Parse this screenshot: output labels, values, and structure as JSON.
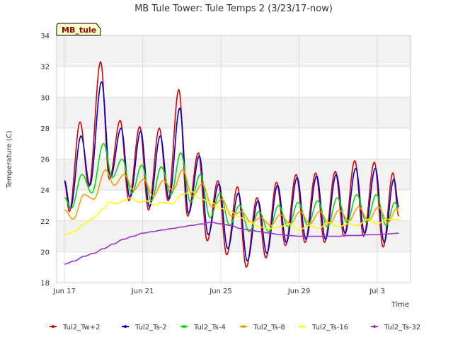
{
  "chart_data": {
    "type": "line",
    "title": "MB Tule Tower: Tule Temps 2 (3/23/17-now)",
    "xlabel": "Time",
    "ylabel": "Temperature (C)",
    "badge": "MB_tule",
    "xlim": [
      "Jun 17",
      "Jul 5"
    ],
    "ylim": [
      18,
      34
    ],
    "yticks": [
      18,
      20,
      22,
      24,
      26,
      28,
      30,
      32,
      34
    ],
    "xticks": [
      "Jun 17",
      "Jun 21",
      "Jun 25",
      "Jun 29",
      "Jul 3"
    ],
    "legend_position": "bottom",
    "grid": true,
    "series": [
      {
        "name": "Tul2_Tw+2",
        "color": "#dd0000",
        "peaks": [
          [
            17.0,
            24.5
          ],
          [
            17.25,
            22.6
          ],
          [
            17.8,
            28.4
          ],
          [
            18.25,
            24.2
          ],
          [
            18.85,
            32.3
          ],
          [
            19.3,
            24.7
          ],
          [
            19.85,
            28.5
          ],
          [
            20.3,
            23.3
          ],
          [
            20.85,
            28.1
          ],
          [
            21.3,
            22.7
          ],
          [
            21.85,
            28.0
          ],
          [
            22.3,
            23.3
          ],
          [
            22.85,
            30.5
          ],
          [
            23.3,
            22.3
          ],
          [
            23.85,
            26.4
          ],
          [
            24.3,
            20.7
          ],
          [
            24.85,
            24.6
          ],
          [
            25.3,
            19.8
          ],
          [
            25.85,
            24.2
          ],
          [
            26.3,
            19.0
          ],
          [
            26.85,
            23.5
          ],
          [
            27.3,
            19.6
          ],
          [
            27.85,
            24.5
          ],
          [
            28.3,
            20.4
          ],
          [
            28.85,
            25.0
          ],
          [
            29.3,
            20.6
          ],
          [
            29.85,
            25.1
          ],
          [
            30.3,
            20.6
          ],
          [
            30.85,
            25.2
          ],
          [
            31.3,
            21.0
          ],
          [
            31.85,
            25.9
          ],
          [
            32.3,
            21.0
          ],
          [
            32.85,
            25.8
          ],
          [
            33.3,
            20.3
          ],
          [
            33.8,
            25.1
          ],
          [
            34.1,
            22.3
          ]
        ]
      },
      {
        "name": "Tul2_Ts-2",
        "color": "#0000cc",
        "peaks": [
          [
            17.0,
            24.6
          ],
          [
            17.3,
            22.8
          ],
          [
            17.85,
            27.5
          ],
          [
            18.3,
            24.3
          ],
          [
            18.9,
            31.0
          ],
          [
            19.35,
            24.8
          ],
          [
            19.9,
            28.0
          ],
          [
            20.35,
            23.5
          ],
          [
            20.9,
            27.8
          ],
          [
            21.35,
            22.9
          ],
          [
            21.9,
            27.5
          ],
          [
            22.35,
            23.4
          ],
          [
            22.9,
            29.3
          ],
          [
            23.35,
            22.5
          ],
          [
            23.9,
            26.2
          ],
          [
            24.35,
            21.1
          ],
          [
            24.9,
            24.4
          ],
          [
            25.35,
            20.2
          ],
          [
            25.9,
            23.8
          ],
          [
            26.35,
            19.4
          ],
          [
            26.9,
            23.3
          ],
          [
            27.35,
            19.9
          ],
          [
            27.9,
            24.3
          ],
          [
            28.35,
            20.6
          ],
          [
            28.9,
            24.8
          ],
          [
            29.35,
            20.8
          ],
          [
            29.9,
            24.9
          ],
          [
            30.35,
            20.8
          ],
          [
            30.9,
            25.0
          ],
          [
            31.35,
            21.2
          ],
          [
            31.9,
            25.4
          ],
          [
            32.35,
            21.2
          ],
          [
            32.9,
            25.4
          ],
          [
            33.35,
            20.6
          ],
          [
            33.85,
            24.7
          ],
          [
            34.1,
            22.9
          ]
        ]
      },
      {
        "name": "Tul2_Ts-4",
        "color": "#00dd00",
        "peaks": [
          [
            17.0,
            23.5
          ],
          [
            17.35,
            22.8
          ],
          [
            17.9,
            25.0
          ],
          [
            18.4,
            23.8
          ],
          [
            19.0,
            27.0
          ],
          [
            19.45,
            24.8
          ],
          [
            19.95,
            26.0
          ],
          [
            20.45,
            23.8
          ],
          [
            20.95,
            25.6
          ],
          [
            21.45,
            23.3
          ],
          [
            21.95,
            25.5
          ],
          [
            22.45,
            23.7
          ],
          [
            22.95,
            26.4
          ],
          [
            23.45,
            23.2
          ],
          [
            23.95,
            25.0
          ],
          [
            24.45,
            22.2
          ],
          [
            24.95,
            23.8
          ],
          [
            25.45,
            21.7
          ],
          [
            25.95,
            23.0
          ],
          [
            26.45,
            21.3
          ],
          [
            26.95,
            22.6
          ],
          [
            27.45,
            21.3
          ],
          [
            27.95,
            23.0
          ],
          [
            28.45,
            21.6
          ],
          [
            28.95,
            23.2
          ],
          [
            29.45,
            21.7
          ],
          [
            29.95,
            23.3
          ],
          [
            30.45,
            21.6
          ],
          [
            30.95,
            23.5
          ],
          [
            31.45,
            21.9
          ],
          [
            31.95,
            23.7
          ],
          [
            32.45,
            21.9
          ],
          [
            32.95,
            23.7
          ],
          [
            33.45,
            21.7
          ],
          [
            33.9,
            23.2
          ],
          [
            34.1,
            22.8
          ]
        ]
      },
      {
        "name": "Tul2_Ts-8",
        "color": "#ff9900",
        "peaks": [
          [
            17.0,
            22.7
          ],
          [
            17.45,
            22.1
          ],
          [
            18.0,
            23.7
          ],
          [
            18.5,
            23.4
          ],
          [
            19.1,
            25.3
          ],
          [
            19.55,
            24.3
          ],
          [
            20.05,
            25.0
          ],
          [
            20.55,
            24.0
          ],
          [
            21.05,
            24.7
          ],
          [
            21.55,
            23.6
          ],
          [
            22.05,
            24.6
          ],
          [
            22.55,
            24.0
          ],
          [
            23.05,
            25.3
          ],
          [
            23.55,
            23.6
          ],
          [
            24.05,
            24.4
          ],
          [
            24.55,
            22.9
          ],
          [
            25.05,
            23.4
          ],
          [
            25.55,
            22.3
          ],
          [
            26.05,
            22.6
          ],
          [
            26.55,
            21.9
          ],
          [
            27.05,
            22.2
          ],
          [
            27.55,
            21.7
          ],
          [
            28.05,
            22.4
          ],
          [
            28.55,
            21.8
          ],
          [
            29.05,
            22.6
          ],
          [
            29.55,
            21.8
          ],
          [
            30.05,
            22.6
          ],
          [
            30.55,
            21.8
          ],
          [
            31.05,
            22.7
          ],
          [
            31.55,
            22.0
          ],
          [
            32.05,
            22.9
          ],
          [
            32.55,
            22.0
          ],
          [
            33.05,
            22.9
          ],
          [
            33.55,
            21.9
          ],
          [
            34.0,
            22.8
          ],
          [
            34.1,
            22.5
          ]
        ]
      },
      {
        "name": "Tul2_Ts-16",
        "color": "#ffff00",
        "peaks": [
          [
            17.0,
            21.1
          ],
          [
            17.5,
            21.3
          ],
          [
            18.0,
            21.8
          ],
          [
            18.5,
            22.2
          ],
          [
            19.0,
            22.8
          ],
          [
            19.3,
            23.2
          ],
          [
            19.7,
            23.1
          ],
          [
            20.0,
            23.3
          ],
          [
            20.4,
            23.5
          ],
          [
            20.8,
            23.2
          ],
          [
            21.2,
            23.3
          ],
          [
            21.6,
            23.0
          ],
          [
            22.0,
            23.2
          ],
          [
            22.5,
            23.1
          ],
          [
            23.0,
            23.7
          ],
          [
            23.5,
            23.9
          ],
          [
            24.0,
            23.4
          ],
          [
            24.5,
            23.2
          ],
          [
            25.0,
            22.8
          ],
          [
            25.5,
            22.6
          ],
          [
            26.0,
            22.2
          ],
          [
            26.5,
            21.9
          ],
          [
            27.0,
            21.6
          ],
          [
            27.5,
            21.5
          ],
          [
            28.0,
            21.6
          ],
          [
            28.5,
            21.8
          ],
          [
            29.0,
            21.4
          ],
          [
            29.5,
            21.7
          ],
          [
            30.0,
            21.5
          ],
          [
            30.5,
            21.9
          ],
          [
            31.0,
            21.6
          ],
          [
            31.5,
            21.8
          ],
          [
            32.0,
            21.7
          ],
          [
            32.5,
            22.1
          ],
          [
            33.0,
            21.8
          ],
          [
            33.5,
            22.1
          ],
          [
            34.1,
            22.1
          ]
        ]
      },
      {
        "name": "Tul2_Ts-32",
        "color": "#9933cc",
        "peaks": [
          [
            17.0,
            19.2
          ],
          [
            17.5,
            19.4
          ],
          [
            18.0,
            19.7
          ],
          [
            18.5,
            19.9
          ],
          [
            19.0,
            20.2
          ],
          [
            19.5,
            20.5
          ],
          [
            20.0,
            20.8
          ],
          [
            20.5,
            21.0
          ],
          [
            21.0,
            21.2
          ],
          [
            21.5,
            21.3
          ],
          [
            22.0,
            21.4
          ],
          [
            22.5,
            21.5
          ],
          [
            23.0,
            21.6
          ],
          [
            23.5,
            21.7
          ],
          [
            24.0,
            21.8
          ],
          [
            24.5,
            21.9
          ],
          [
            25.0,
            21.8
          ],
          [
            25.5,
            21.7
          ],
          [
            26.0,
            21.5
          ],
          [
            26.5,
            21.4
          ],
          [
            27.0,
            21.3
          ],
          [
            27.5,
            21.2
          ],
          [
            28.0,
            21.1
          ],
          [
            28.5,
            21.05
          ],
          [
            29.0,
            21.0
          ],
          [
            29.5,
            21.0
          ],
          [
            30.0,
            21.0
          ],
          [
            30.5,
            21.0
          ],
          [
            31.0,
            21.0
          ],
          [
            31.5,
            21.05
          ],
          [
            32.0,
            21.05
          ],
          [
            32.5,
            21.1
          ],
          [
            33.0,
            21.1
          ],
          [
            33.5,
            21.15
          ],
          [
            34.1,
            21.2
          ]
        ]
      }
    ]
  }
}
